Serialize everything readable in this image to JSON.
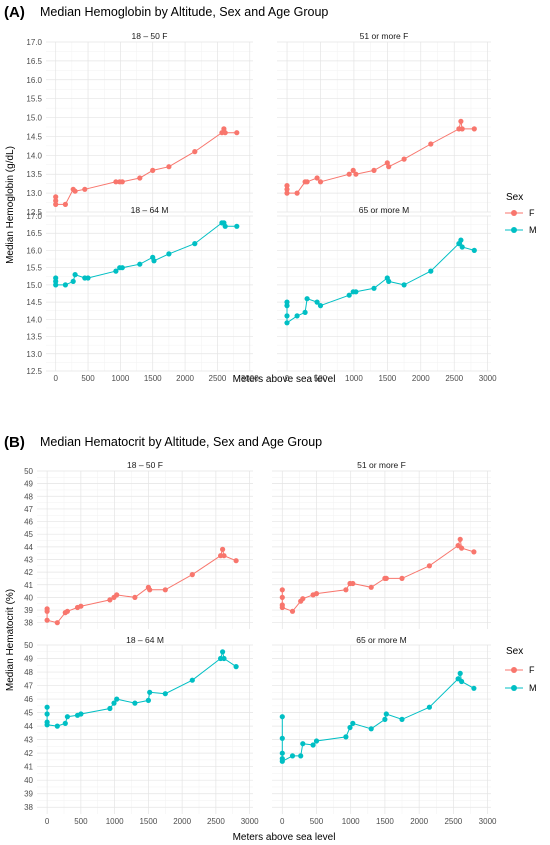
{
  "figure": {
    "panels": [
      {
        "letter": "(A)",
        "title": "Median Hemoglobin by Altitude, Sex and Age Group",
        "ylabel": "Median Hemoglobin (g/dL)",
        "xlabel": "Meters above sea level"
      },
      {
        "letter": "(B)",
        "title": "Median Hematocrit by Altitude, Sex and Age Group",
        "ylabel": "Median Hematocrit (%)",
        "xlabel": "Meters above sea level"
      }
    ],
    "legend": {
      "title": "Sex",
      "items": [
        {
          "label": "F",
          "color": "#F8766D"
        },
        {
          "label": "M",
          "color": "#00BFC4"
        }
      ]
    }
  },
  "chart_data": [
    {
      "type": "line",
      "title": "Median Hemoglobin by Altitude, Sex and Age Group",
      "xlabel": "Meters above sea level",
      "ylabel": "Median Hemoglobin (g/dL)",
      "xlim": [
        -150,
        3050
      ],
      "ylim": [
        12.5,
        17.0
      ],
      "x_ticks": [
        0,
        500,
        1000,
        1500,
        2000,
        2500,
        3000
      ],
      "y_ticks": [
        12.5,
        13.0,
        13.5,
        14.0,
        14.5,
        15.0,
        15.5,
        16.0,
        16.5,
        17.0
      ],
      "y_ticks_labels": [
        "12.5",
        "13.0",
        "13.5",
        "14.0",
        "14.5",
        "15.0",
        "15.5",
        "16.0",
        "16.5",
        "17.0"
      ],
      "x_ticks_labels": [
        "0",
        "500",
        "1000",
        "1500",
        "2000",
        "2500",
        "3000"
      ],
      "grid": true,
      "legend_position": "right",
      "facets": [
        {
          "label": "18 – 50 F",
          "sex": "F",
          "x": [
            0,
            0,
            0,
            150,
            270,
            300,
            450,
            930,
            990,
            1030,
            1300,
            1500,
            1750,
            2150,
            2570,
            2600,
            2620,
            2800
          ],
          "y": [
            12.9,
            12.8,
            12.7,
            12.7,
            13.1,
            13.05,
            13.1,
            13.3,
            13.3,
            13.3,
            13.4,
            13.6,
            13.7,
            14.1,
            14.6,
            14.7,
            14.6,
            14.6
          ]
        },
        {
          "label": "51 or more F",
          "sex": "F",
          "x": [
            0,
            0,
            0,
            150,
            270,
            300,
            450,
            500,
            930,
            990,
            1030,
            1300,
            1500,
            1520,
            1750,
            2150,
            2570,
            2600,
            2620,
            2800
          ],
          "y": [
            13.2,
            13.1,
            13.0,
            13.0,
            13.3,
            13.3,
            13.4,
            13.3,
            13.5,
            13.6,
            13.5,
            13.6,
            13.8,
            13.7,
            13.9,
            14.3,
            14.7,
            14.9,
            14.7,
            14.7
          ]
        },
        {
          "label": "18 – 64 M",
          "sex": "M",
          "x": [
            0,
            0,
            0,
            150,
            270,
            300,
            450,
            500,
            930,
            990,
            1030,
            1300,
            1500,
            1520,
            1750,
            2150,
            2570,
            2600,
            2620,
            2800
          ],
          "y": [
            15.2,
            15.1,
            15.0,
            15.0,
            15.1,
            15.3,
            15.2,
            15.2,
            15.4,
            15.5,
            15.5,
            15.6,
            15.8,
            15.7,
            15.9,
            16.2,
            16.8,
            16.8,
            16.7,
            16.7
          ]
        },
        {
          "label": "65 or more M",
          "sex": "M",
          "x": [
            0,
            0,
            0,
            0,
            150,
            270,
            300,
            450,
            500,
            930,
            990,
            1030,
            1300,
            1500,
            1520,
            1750,
            2150,
            2570,
            2600,
            2620,
            2800
          ],
          "y": [
            14.5,
            14.4,
            14.1,
            13.9,
            14.1,
            14.2,
            14.6,
            14.5,
            14.4,
            14.7,
            14.8,
            14.8,
            14.9,
            15.2,
            15.1,
            15.0,
            15.4,
            16.2,
            16.3,
            16.1,
            16.0
          ]
        }
      ]
    },
    {
      "type": "line",
      "title": "Median Hematocrit by Altitude, Sex and Age Group",
      "xlabel": "Meters above sea level",
      "ylabel": "Median Hematocrit (%)",
      "xlim": [
        -150,
        3050
      ],
      "ylim": [
        37.5,
        50.0
      ],
      "x_ticks": [
        0,
        500,
        1000,
        1500,
        2000,
        2500,
        3000
      ],
      "y_ticks": [
        38,
        39,
        40,
        41,
        42,
        43,
        44,
        45,
        46,
        47,
        48,
        49,
        50
      ],
      "y_ticks_labels": [
        "38",
        "39",
        "40",
        "41",
        "42",
        "43",
        "44",
        "45",
        "46",
        "47",
        "48",
        "49",
        "50"
      ],
      "x_ticks_labels": [
        "0",
        "500",
        "1000",
        "1500",
        "2000",
        "2500",
        "3000"
      ],
      "grid": true,
      "legend_position": "right",
      "facets": [
        {
          "label": "18 – 50 F",
          "sex": "F",
          "x": [
            0,
            0,
            0,
            150,
            270,
            300,
            450,
            500,
            930,
            990,
            1030,
            1300,
            1500,
            1520,
            1750,
            2150,
            2570,
            2600,
            2620,
            2800
          ],
          "y": [
            39.1,
            38.9,
            38.2,
            38.0,
            38.8,
            38.9,
            39.2,
            39.3,
            39.8,
            40.0,
            40.2,
            40.0,
            40.8,
            40.6,
            40.6,
            41.8,
            43.3,
            43.8,
            43.3,
            42.9
          ]
        },
        {
          "label": "51 or more F",
          "sex": "F",
          "x": [
            0,
            0,
            0,
            0,
            150,
            270,
            300,
            450,
            500,
            930,
            990,
            1030,
            1300,
            1500,
            1520,
            1750,
            2150,
            2570,
            2600,
            2620,
            2800
          ],
          "y": [
            40.6,
            40.0,
            39.4,
            39.2,
            38.9,
            39.7,
            39.9,
            40.2,
            40.3,
            40.6,
            41.1,
            41.1,
            40.8,
            41.5,
            41.5,
            41.5,
            42.5,
            44.1,
            44.6,
            43.9,
            43.6
          ]
        },
        {
          "label": "18 – 64 M",
          "sex": "M",
          "x": [
            0,
            0,
            0,
            0,
            150,
            270,
            300,
            450,
            500,
            930,
            990,
            1030,
            1300,
            1500,
            1520,
            1750,
            2150,
            2570,
            2600,
            2620,
            2800
          ],
          "y": [
            45.4,
            44.9,
            44.3,
            44.1,
            44.0,
            44.2,
            44.7,
            44.8,
            44.9,
            45.3,
            45.7,
            46.0,
            45.7,
            45.9,
            46.5,
            46.4,
            47.4,
            49.0,
            49.5,
            49.0,
            48.4
          ]
        },
        {
          "label": "65 or more M",
          "sex": "M",
          "x": [
            0,
            0,
            0,
            0,
            0,
            150,
            270,
            300,
            450,
            500,
            930,
            990,
            1030,
            1300,
            1500,
            1520,
            1750,
            2150,
            2570,
            2600,
            2620,
            2800
          ],
          "y": [
            44.7,
            43.1,
            42.0,
            41.6,
            41.4,
            41.8,
            41.8,
            42.7,
            42.6,
            42.9,
            43.2,
            43.9,
            44.2,
            43.8,
            44.5,
            44.9,
            44.5,
            45.4,
            47.5,
            47.9,
            47.3,
            46.8
          ]
        }
      ]
    }
  ]
}
